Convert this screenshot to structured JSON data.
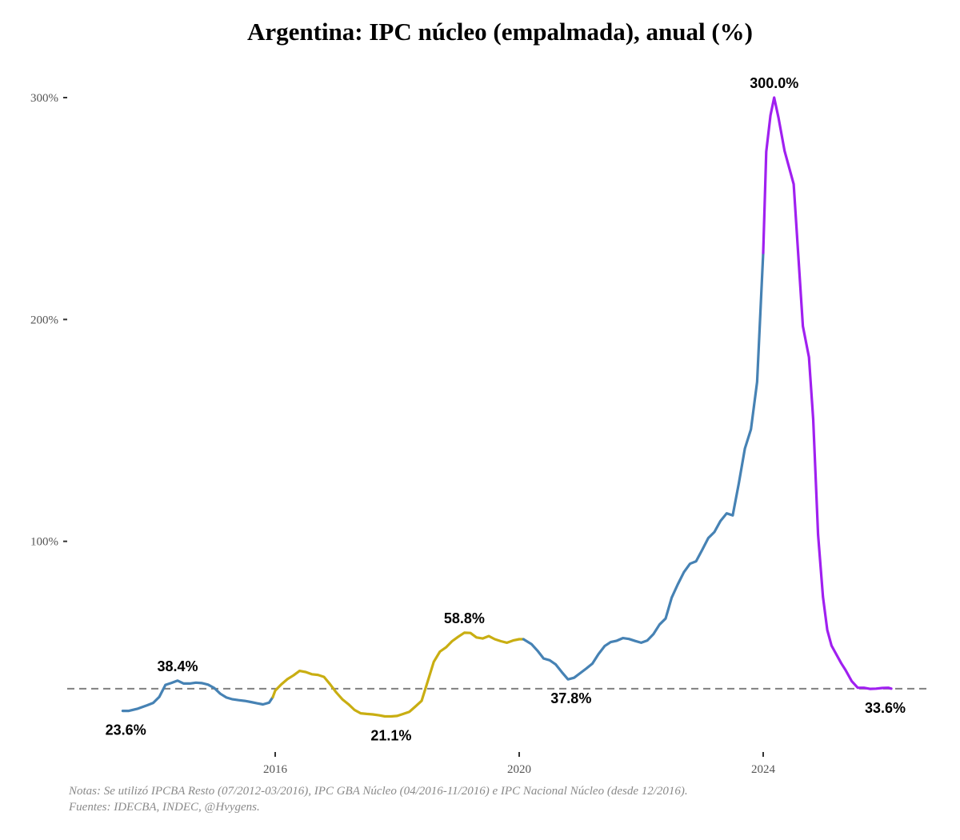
{
  "chart_data": {
    "type": "line",
    "title": "Argentina: IPC núcleo (empalmada), anual (%)",
    "xlabel": "",
    "ylabel": "",
    "x_ticks": [
      "2016",
      "2020",
      "2024"
    ],
    "y_ticks": [
      "100%",
      "200%",
      "300%"
    ],
    "xlim": [
      2012.6,
      2026.3
    ],
    "ylim": [
      0,
      320
    ],
    "grid": false,
    "reference_line": {
      "y": 33.6,
      "style": "dashed"
    },
    "colors": {
      "blue": "#4682B4",
      "gold": "#C9AE12",
      "purple": "#A020F0",
      "ref": "#808080"
    },
    "segments": [
      {
        "color_key": "blue",
        "x": [
          2013.5,
          2013.6,
          2013.75,
          2013.9,
          2014.0,
          2014.1,
          2014.2,
          2014.3,
          2014.4,
          2014.5,
          2014.6,
          2014.7,
          2014.8,
          2014.9,
          2015.0,
          2015.1,
          2015.2,
          2015.3,
          2015.4,
          2015.5,
          2015.6,
          2015.7,
          2015.8,
          2015.9,
          2015.96
        ],
        "y": [
          23.6,
          23.6,
          24.6,
          26.1,
          27.2,
          29.9,
          35.3,
          36.2,
          37.2,
          35.9,
          35.9,
          36.3,
          36.1,
          35.4,
          33.9,
          31.3,
          29.6,
          28.8,
          28.4,
          28.1,
          27.6,
          27.0,
          26.5,
          27.3,
          29.8
        ]
      },
      {
        "color_key": "gold",
        "x": [
          2015.96,
          2016.0,
          2016.1,
          2016.2,
          2016.3,
          2016.4,
          2016.5,
          2016.6,
          2016.7,
          2016.8,
          2016.9,
          2017.0,
          2017.1,
          2017.2,
          2017.3,
          2017.4,
          2017.5,
          2017.6,
          2017.7,
          2017.8,
          2017.9,
          2018.0,
          2018.1,
          2018.2,
          2018.3,
          2018.4,
          2018.5,
          2018.6,
          2018.7,
          2018.8,
          2018.9,
          2019.0,
          2019.1,
          2019.2,
          2019.3,
          2019.4,
          2019.5,
          2019.6,
          2019.7,
          2019.8,
          2019.9,
          2020.0,
          2020.07
        ],
        "y": [
          29.8,
          32.7,
          35.5,
          37.9,
          39.6,
          41.6,
          41.1,
          40.1,
          39.8,
          38.9,
          35.6,
          31.9,
          28.8,
          26.6,
          24.0,
          22.5,
          22.2,
          22.0,
          21.6,
          21.1,
          21.1,
          21.3,
          22.2,
          23.2,
          25.6,
          28.1,
          36.8,
          45.7,
          50.3,
          52.2,
          55.0,
          57.0,
          58.8,
          58.7,
          56.7,
          56.2,
          57.3,
          55.9,
          55.0,
          54.3,
          55.3,
          55.9,
          55.9
        ]
      },
      {
        "color_key": "blue",
        "x": [
          2020.07,
          2020.2,
          2020.3,
          2020.4,
          2020.5,
          2020.6,
          2020.7,
          2020.8,
          2020.9,
          2021.0,
          2021.1,
          2021.2,
          2021.3,
          2021.4,
          2021.5,
          2021.6,
          2021.7,
          2021.8,
          2021.9,
          2022.0,
          2022.1,
          2022.2,
          2022.3,
          2022.4,
          2022.5,
          2022.6,
          2022.7,
          2022.8,
          2022.9,
          2023.0,
          2023.1,
          2023.2,
          2023.3,
          2023.4,
          2023.5,
          2023.6,
          2023.7,
          2023.8,
          2023.9,
          2024.0
        ],
        "y": [
          55.9,
          53.7,
          50.7,
          47.2,
          46.4,
          44.5,
          41.0,
          37.8,
          38.5,
          40.6,
          42.7,
          44.9,
          49.2,
          52.8,
          54.6,
          55.2,
          56.4,
          56.0,
          55.1,
          54.3,
          55.3,
          58.2,
          62.5,
          65.2,
          74.6,
          80.6,
          86.1,
          89.9,
          91.0,
          96.2,
          101.5,
          104.2,
          109.2,
          112.6,
          111.7,
          126.1,
          141.8,
          150.5,
          171.9,
          230.0
        ]
      },
      {
        "color_key": "purple",
        "x": [
          2024.0,
          2024.05,
          2024.12,
          2024.18,
          2024.25,
          2024.35,
          2024.5,
          2024.65,
          2024.75,
          2024.82,
          2024.9,
          2024.98,
          2025.05,
          2025.12,
          2025.2,
          2025.28,
          2025.35,
          2025.45,
          2025.55,
          2025.65,
          2025.75,
          2025.85,
          2025.95,
          2026.05,
          2026.1
        ],
        "y": [
          230.0,
          275.6,
          292.0,
          300.0,
          291.0,
          276.0,
          261.0,
          197.0,
          183.0,
          155.0,
          103.0,
          75.0,
          60.0,
          53.0,
          49.0,
          45.0,
          42.0,
          37.0,
          34.0,
          34.0,
          33.5,
          33.6,
          33.9,
          34.0,
          33.6
        ]
      }
    ],
    "point_labels": [
      {
        "text": "23.6%",
        "x": 2013.55,
        "y": 23.6,
        "position": "below"
      },
      {
        "text": "38.4%",
        "x": 2014.4,
        "y": 37.2,
        "position": "above"
      },
      {
        "text": "21.1%",
        "x": 2017.9,
        "y": 21.1,
        "position": "below"
      },
      {
        "text": "58.8%",
        "x": 2019.1,
        "y": 58.8,
        "position": "above"
      },
      {
        "text": "37.8%",
        "x": 2020.85,
        "y": 37.8,
        "position": "below"
      },
      {
        "text": "300.0%",
        "x": 2024.18,
        "y": 300.0,
        "position": "above"
      },
      {
        "text": "33.6%",
        "x": 2026.0,
        "y": 33.6,
        "position": "below"
      }
    ]
  },
  "notes": {
    "line1": "Notas: Se utilizó IPCBA Resto (07/2012-03/2016), IPC GBA Núcleo (04/2016-11/2016) e IPC Nacional Núcleo (desde 12/2016).",
    "line2": "Fuentes: IDECBA, INDEC, @Hvygens."
  }
}
